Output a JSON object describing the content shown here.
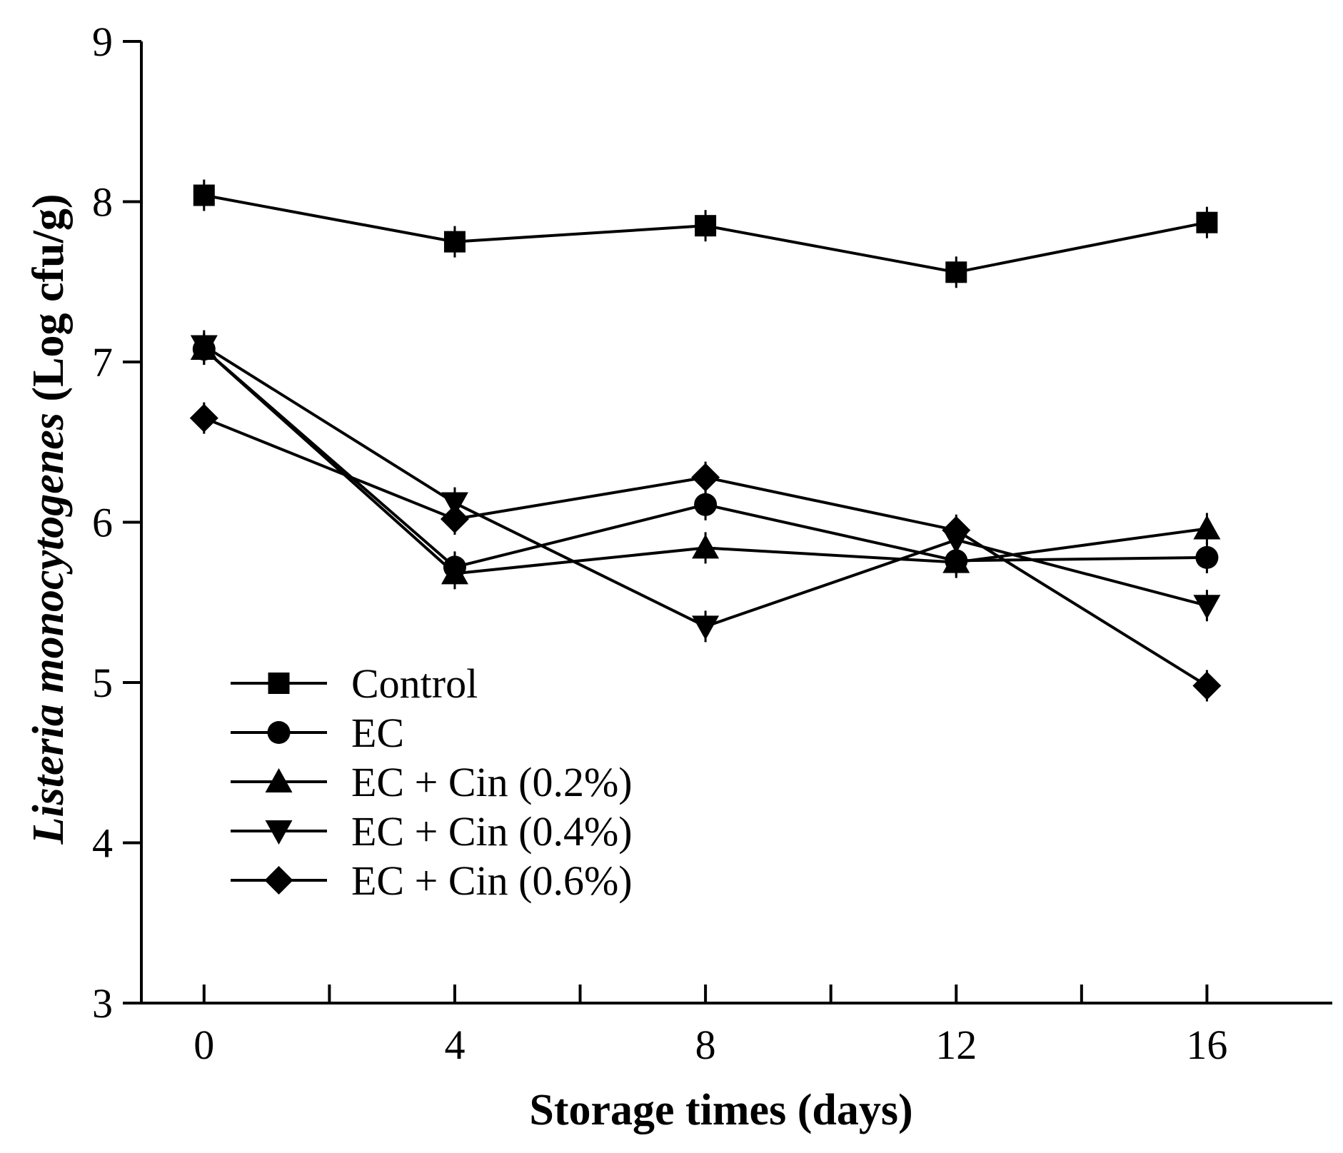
{
  "chart_data": {
    "type": "line",
    "title": "",
    "xlabel": "Storage times (days)",
    "ylabel_italic": "Listeria monocytogenes",
    "ylabel_rest": " (Log cfu/g)",
    "x": [
      0,
      4,
      8,
      12,
      16
    ],
    "xlim": [
      -1,
      18
    ],
    "ylim": [
      3,
      9
    ],
    "x_major_ticks": [
      0,
      4,
      8,
      12,
      16
    ],
    "x_minor_ticks": [
      2,
      6,
      10,
      14
    ],
    "y_ticks": [
      3,
      4,
      5,
      6,
      7,
      8,
      9
    ],
    "grid": false,
    "legend_position": "lower-left",
    "series": [
      {
        "name": "Control",
        "marker": "square",
        "values": [
          8.04,
          7.75,
          7.85,
          7.56,
          7.87
        ]
      },
      {
        "name": "EC",
        "marker": "circle",
        "values": [
          7.08,
          5.72,
          6.11,
          5.76,
          5.78
        ]
      },
      {
        "name": "EC + Cin (0.2%)",
        "marker": "triangle-up",
        "values": [
          7.08,
          5.68,
          5.84,
          5.75,
          5.96
        ]
      },
      {
        "name": "EC + Cin (0.4%)",
        "marker": "triangle-down",
        "values": [
          7.1,
          6.12,
          5.35,
          5.89,
          5.48
        ]
      },
      {
        "name": "EC + Cin (0.6%)",
        "marker": "diamond",
        "values": [
          6.65,
          6.02,
          6.28,
          5.95,
          4.98
        ]
      }
    ]
  }
}
